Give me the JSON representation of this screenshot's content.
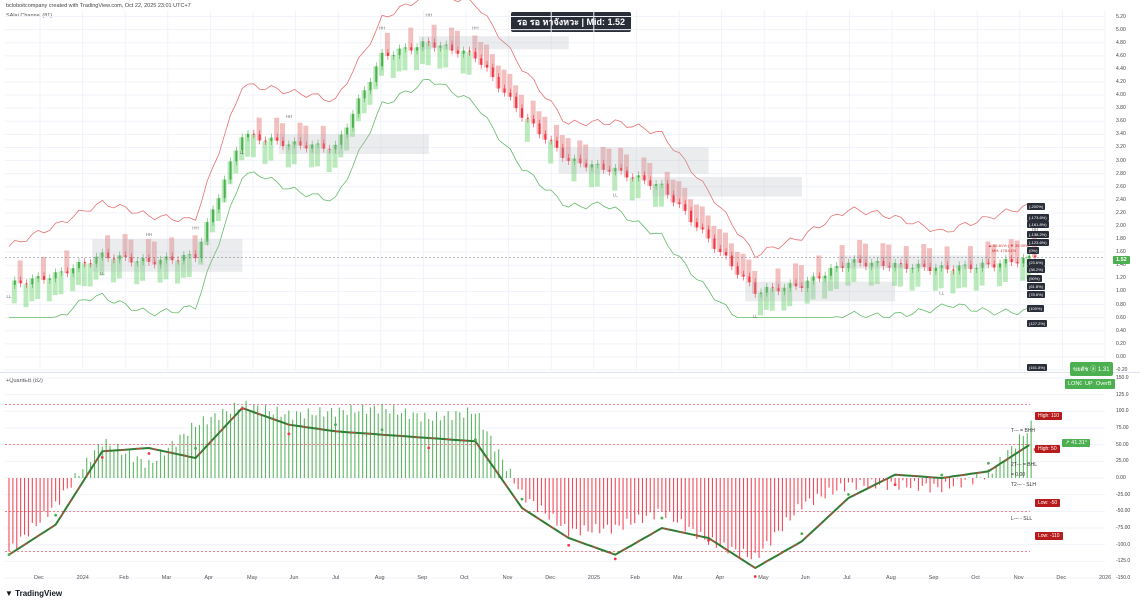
{
  "header": {
    "credit": "bcloboitcompany created with TradingView.com, Oct 22, 2025 23:01 UTC+7",
    "indicator_top": "SAlai Channel (81)",
    "indicator_bottom": "+QuantEB (82)",
    "title_badge": "รอ รอ หาจังหวะ | Mid: 1.52"
  },
  "footer": {
    "logo": "TradingView",
    "x_ticks": [
      "Dec",
      "2024",
      "Feb",
      "Mar",
      "Apr",
      "May",
      "Jun",
      "Jul",
      "Aug",
      "Sep",
      "Oct",
      "Nov",
      "Dec",
      "2025",
      "Feb",
      "Mar",
      "Apr",
      "May",
      "Jun",
      "Jul",
      "Aug",
      "Sep",
      "Oct",
      "Nov",
      "Dec",
      "2026"
    ]
  },
  "price_axis": {
    "ticks": [
      "5.20",
      "5.00",
      "4.80",
      "4.60",
      "4.40",
      "4.20",
      "4.00",
      "3.80",
      "3.60",
      "3.40",
      "3.20",
      "3.00",
      "2.80",
      "2.60",
      "2.40",
      "2.20",
      "2.00",
      "1.80",
      "1.60",
      "1.40",
      "1.20",
      "1.00",
      "0.80",
      "0.60",
      "0.40",
      "0.20",
      "0.00",
      "-0.20"
    ],
    "last_price": "1.52"
  },
  "osc_axis": {
    "ticks": [
      "150.0",
      "125.0",
      "100.0",
      "75.00",
      "50.00",
      "25.00",
      "0.00",
      "-25.00",
      "-50.00",
      "-75.00",
      "-100.0",
      "-125.0",
      "-150.0"
    ]
  },
  "annotations": {
    "swing_labels": [
      "LL",
      "LL",
      "HH",
      "HH",
      "LL",
      "HH",
      "HH",
      "HH",
      "HH",
      "LL",
      "LL",
      "LL",
      "HH"
    ],
    "signal_box": "ขยตัช ⓐ 1.31",
    "state_chips": [
      "LONG",
      "UP",
      "OverB"
    ],
    "osc_levels": {
      "high1": "High: 110",
      "high2": "High: 50",
      "low1": "Low: -50",
      "low2": "Low: -110"
    },
    "osc_pct": "↗ 41.31°",
    "osc_text": [
      "T--- = BHH",
      "2T--- = BHL",
      "= 0.00",
      "T2--- - SLH",
      "L--- - SLL"
    ],
    "right_tags": [
      "(-200%)",
      "(-173.6%)",
      "(-161.8%)",
      "(-138.2%)",
      "(-123.6%)",
      "(0%)",
      "(23.6%)",
      "(38.2%)",
      "(50%)",
      "(61.8%)",
      "(78.6%)",
      "(100%)",
      "(127.2%)",
      "(161.8%)",
      "(261.8%)"
    ],
    "mini_info": [
      "▲ 82.81% | ▼ 39.39%",
      "MH: 178.61%"
    ]
  },
  "colors": {
    "bull": "#4caf50",
    "bear": "#f23645",
    "bull_fill": "#69d26a",
    "bear_fill": "#e57373",
    "channel_upper": "#e57373",
    "channel_lower": "#66bb6a",
    "zone": "#b0b3ba"
  },
  "chart_data": [
    {
      "type": "line",
      "title": "",
      "x": [
        "Dec",
        "2024",
        "Feb",
        "Mar",
        "Apr",
        "May",
        "Jun",
        "Jul",
        "Aug",
        "Sep",
        "Oct",
        "Nov",
        "Dec",
        "2025",
        "Feb",
        "Mar",
        "Apr",
        "May",
        "Jun",
        "Jul",
        "Aug",
        "Sep",
        "Oct"
      ],
      "series": [
        {
          "values": [
            1.1,
            1.25,
            1.55,
            1.45,
            1.55,
            3.4,
            3.25,
            3.2,
            4.6,
            4.8,
            4.6,
            3.7,
            3.0,
            2.85,
            2.6,
            1.8,
            1.0,
            1.1,
            1.45,
            1.4,
            1.35,
            1.4,
            1.52
          ]
        }
      ],
      "ylim": [
        -0.2,
        5.3
      ],
      "grid": true
    },
    {
      "type": "bar",
      "title": "",
      "x": [
        "Dec",
        "2024",
        "Feb",
        "Mar",
        "Apr",
        "May",
        "Jun",
        "Jul",
        "Aug",
        "Sep",
        "Oct",
        "Nov",
        "Dec",
        "2025",
        "Feb",
        "Mar",
        "Apr",
        "May",
        "Jun",
        "Jul",
        "Aug",
        "Sep",
        "Oct"
      ],
      "series": [
        {
          "values": [
            -110,
            -40,
            55,
            20,
            80,
            110,
            95,
            100,
            105,
            90,
            100,
            -25,
            -80,
            -75,
            -50,
            -95,
            -120,
            -40,
            -10,
            -10,
            -15,
            5,
            85
          ]
        },
        {
          "values": [
            -115,
            -70,
            40,
            45,
            30,
            105,
            80,
            70,
            65,
            60,
            55,
            -45,
            -90,
            -115,
            -75,
            -90,
            -135,
            -95,
            -30,
            5,
            0,
            10,
            55
          ]
        }
      ],
      "ylim": [
        -150,
        150
      ],
      "grid": true
    }
  ]
}
